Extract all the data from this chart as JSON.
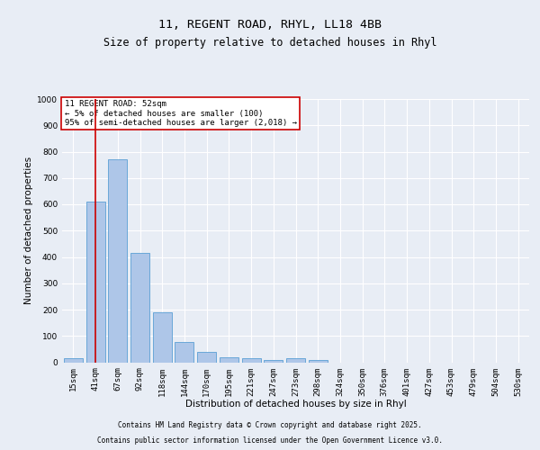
{
  "title1": "11, REGENT ROAD, RHYL, LL18 4BB",
  "title2": "Size of property relative to detached houses in Rhyl",
  "xlabel": "Distribution of detached houses by size in Rhyl",
  "ylabel": "Number of detached properties",
  "categories": [
    "15sqm",
    "41sqm",
    "67sqm",
    "92sqm",
    "118sqm",
    "144sqm",
    "170sqm",
    "195sqm",
    "221sqm",
    "247sqm",
    "273sqm",
    "298sqm",
    "324sqm",
    "350sqm",
    "376sqm",
    "401sqm",
    "427sqm",
    "453sqm",
    "479sqm",
    "504sqm",
    "530sqm"
  ],
  "values": [
    15,
    610,
    770,
    415,
    190,
    77,
    38,
    18,
    15,
    10,
    15,
    8,
    0,
    0,
    0,
    0,
    0,
    0,
    0,
    0,
    0
  ],
  "bar_color": "#aec6e8",
  "bar_edge_color": "#5a9fd4",
  "vline_x": 1.0,
  "vline_color": "#cc0000",
  "annotation_text": "11 REGENT ROAD: 52sqm\n← 5% of detached houses are smaller (100)\n95% of semi-detached houses are larger (2,018) →",
  "annotation_box_color": "#cc0000",
  "ylim": [
    0,
    1000
  ],
  "yticks": [
    0,
    100,
    200,
    300,
    400,
    500,
    600,
    700,
    800,
    900,
    1000
  ],
  "bg_color": "#e8edf5",
  "plot_bg_color": "#e8edf5",
  "grid_color": "#ffffff",
  "footer_line1": "Contains HM Land Registry data © Crown copyright and database right 2025.",
  "footer_line2": "Contains public sector information licensed under the Open Government Licence v3.0.",
  "title_fontsize": 9.5,
  "subtitle_fontsize": 8.5,
  "axis_label_fontsize": 7.5,
  "tick_fontsize": 6.5,
  "annotation_fontsize": 6.5,
  "footer_fontsize": 5.5
}
